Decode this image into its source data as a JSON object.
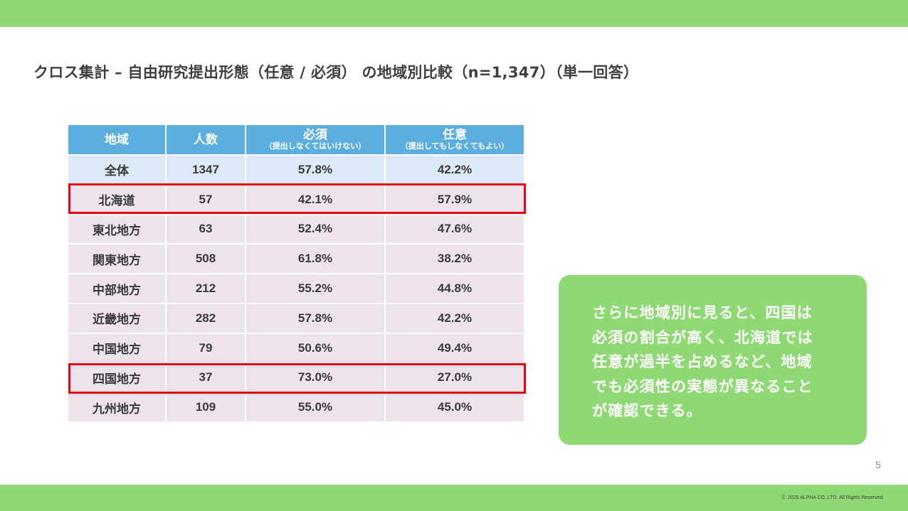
{
  "slide": {
    "title": "クロス集計 – 自由研究提出形態（任意 / 必須） の地域別比較（n=1,347）（単一回答）",
    "page_number": "5",
    "copyright": "Ⓒ 2025 ALPHA CO.,LTD. All Rights Reserved"
  },
  "table": {
    "headers": {
      "region": "地域",
      "count": "人数",
      "required": "必須",
      "required_sub": "（提出しなくてはいけない）",
      "optional": "任意",
      "optional_sub": "（提出してもしなくてもよい）"
    },
    "rows": [
      {
        "region": "全体",
        "count": "1347",
        "required": "57.8%",
        "optional": "42.2%"
      },
      {
        "region": "北海道",
        "count": "57",
        "required": "42.1%",
        "optional": "57.9%"
      },
      {
        "region": "東北地方",
        "count": "63",
        "required": "52.4%",
        "optional": "47.6%"
      },
      {
        "region": "関東地方",
        "count": "508",
        "required": "61.8%",
        "optional": "38.2%"
      },
      {
        "region": "中部地方",
        "count": "212",
        "required": "55.2%",
        "optional": "44.8%"
      },
      {
        "region": "近畿地方",
        "count": "282",
        "required": "57.8%",
        "optional": "42.2%"
      },
      {
        "region": "中国地方",
        "count": "79",
        "required": "50.6%",
        "optional": "49.4%"
      },
      {
        "region": "四国地方",
        "count": "37",
        "required": "73.0%",
        "optional": "27.0%"
      },
      {
        "region": "九州地方",
        "count": "109",
        "required": "55.0%",
        "optional": "45.0%"
      }
    ],
    "highlighted_rows": [
      "北海道",
      "四国地方"
    ]
  },
  "callout": {
    "lines": [
      "さらに地域別に見ると、四国は",
      "必須の割合が高く、北海道では",
      "任意が過半を占めるなど、地域",
      "でも必須性の実態が異なること",
      "が確認できる。"
    ]
  },
  "colors": {
    "accent_green": "#8fd974",
    "header_blue": "#5aaee0",
    "total_row": "#dce9f6",
    "region_row": "#ede3ec",
    "highlight_red": "#e30613"
  }
}
